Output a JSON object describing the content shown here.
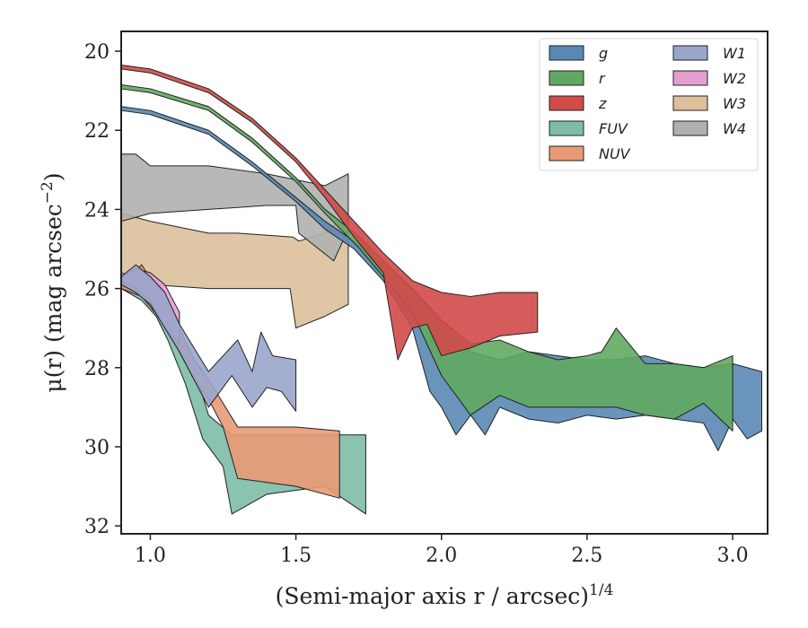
{
  "chart_data": {
    "type": "area",
    "xlabel": "(Semi-major axis r / arcsec)",
    "xlabel_exponent": "1/4",
    "ylabel": "μ(r) (mag arcsec",
    "ylabel_exponent": "−2",
    "ylabel_close": ")",
    "xlim": [
      0.9,
      3.12
    ],
    "ylim": [
      32.2,
      19.5
    ],
    "y_inverted": true,
    "xticks": [
      1.0,
      1.5,
      2.0,
      2.5,
      3.0
    ],
    "xtick_labels": [
      "1.0",
      "1.5",
      "2.0",
      "2.5",
      "3.0"
    ],
    "yticks": [
      20,
      22,
      24,
      26,
      28,
      30,
      32
    ],
    "ytick_labels": [
      "20",
      "22",
      "24",
      "26",
      "28",
      "30",
      "32"
    ],
    "grid": false,
    "legend_position": "top-right",
    "legend_columns": 2,
    "series": [
      {
        "name": "W3",
        "color": "#dcc09b",
        "upper": [
          [
            0.9,
            24.1
          ],
          [
            1.0,
            24.3
          ],
          [
            1.2,
            24.6
          ],
          [
            1.3,
            24.6
          ],
          [
            1.49,
            24.7
          ],
          [
            1.51,
            24.8
          ],
          [
            1.6,
            24.6
          ],
          [
            1.68,
            24.1
          ]
        ],
        "lower": [
          [
            0.9,
            25.6
          ],
          [
            1.0,
            25.9
          ],
          [
            1.2,
            26.0
          ],
          [
            1.3,
            26.0
          ],
          [
            1.48,
            26.0
          ],
          [
            1.5,
            27.0
          ],
          [
            1.6,
            26.7
          ],
          [
            1.68,
            26.4
          ]
        ]
      },
      {
        "name": "W4",
        "color": "#b0b0b0",
        "upper": [
          [
            0.9,
            22.6
          ],
          [
            0.95,
            22.6
          ],
          [
            1.0,
            22.9
          ],
          [
            1.1,
            22.9
          ],
          [
            1.2,
            22.9
          ],
          [
            1.4,
            23.1
          ],
          [
            1.6,
            23.4
          ],
          [
            1.68,
            23.1
          ]
        ],
        "lower": [
          [
            0.9,
            24.3
          ],
          [
            1.0,
            24.1
          ],
          [
            1.2,
            24.0
          ],
          [
            1.4,
            23.9
          ],
          [
            1.5,
            23.9
          ],
          [
            1.51,
            24.6
          ],
          [
            1.63,
            25.3
          ],
          [
            1.68,
            24.5
          ]
        ]
      },
      {
        "name": "FUV",
        "color": "#7dbda7",
        "upper": [
          [
            0.9,
            26.0
          ],
          [
            0.96,
            25.8
          ],
          [
            1.0,
            26.0
          ],
          [
            1.05,
            26.6
          ],
          [
            1.1,
            27.2
          ],
          [
            1.15,
            28.0
          ],
          [
            1.2,
            29.2
          ],
          [
            1.28,
            29.7
          ],
          [
            1.5,
            29.7
          ],
          [
            1.74,
            29.7
          ]
        ],
        "lower": [
          [
            0.9,
            26.0
          ],
          [
            0.97,
            26.3
          ],
          [
            1.02,
            26.7
          ],
          [
            1.06,
            27.3
          ],
          [
            1.12,
            28.4
          ],
          [
            1.18,
            29.8
          ],
          [
            1.25,
            30.5
          ],
          [
            1.28,
            31.7
          ],
          [
            1.4,
            31.2
          ],
          [
            1.6,
            31.0
          ],
          [
            1.74,
            31.7
          ]
        ]
      },
      {
        "name": "NUV",
        "color": "#e99a75",
        "upper": [
          [
            0.9,
            25.9
          ],
          [
            0.97,
            25.4
          ],
          [
            1.05,
            26.3
          ],
          [
            1.1,
            27.0
          ],
          [
            1.15,
            27.8
          ],
          [
            1.2,
            28.3
          ],
          [
            1.25,
            28.9
          ],
          [
            1.3,
            29.5
          ],
          [
            1.5,
            29.5
          ],
          [
            1.65,
            29.6
          ]
        ],
        "lower": [
          [
            0.9,
            26.0
          ],
          [
            0.97,
            26.2
          ],
          [
            1.05,
            26.9
          ],
          [
            1.1,
            27.6
          ],
          [
            1.15,
            28.3
          ],
          [
            1.2,
            28.8
          ],
          [
            1.25,
            29.5
          ],
          [
            1.3,
            30.8
          ],
          [
            1.5,
            31.0
          ],
          [
            1.65,
            31.3
          ]
        ]
      },
      {
        "name": "W2",
        "color": "#e39fd0",
        "upper": [
          [
            0.9,
            25.7
          ],
          [
            0.95,
            25.5
          ],
          [
            1.0,
            25.6
          ],
          [
            1.05,
            25.9
          ],
          [
            1.1,
            26.6
          ]
        ],
        "lower": [
          [
            0.9,
            25.8
          ],
          [
            0.95,
            26.0
          ],
          [
            1.0,
            26.3
          ],
          [
            1.05,
            27.0
          ],
          [
            1.1,
            27.4
          ]
        ]
      },
      {
        "name": "W1",
        "color": "#9aa5cb",
        "upper": [
          [
            0.9,
            25.7
          ],
          [
            0.95,
            25.4
          ],
          [
            1.0,
            25.7
          ],
          [
            1.05,
            26.1
          ],
          [
            1.1,
            26.9
          ],
          [
            1.2,
            28.1
          ],
          [
            1.3,
            27.3
          ],
          [
            1.35,
            28.1
          ],
          [
            1.38,
            27.1
          ],
          [
            1.42,
            27.7
          ],
          [
            1.5,
            27.8
          ]
        ],
        "lower": [
          [
            0.9,
            25.9
          ],
          [
            0.95,
            26.1
          ],
          [
            1.0,
            26.4
          ],
          [
            1.05,
            27.0
          ],
          [
            1.1,
            27.6
          ],
          [
            1.2,
            29.0
          ],
          [
            1.28,
            28.2
          ],
          [
            1.35,
            29.0
          ],
          [
            1.4,
            28.5
          ],
          [
            1.45,
            28.6
          ],
          [
            1.5,
            29.1
          ]
        ]
      },
      {
        "name": "g",
        "color": "#5a88b4",
        "upper": [
          [
            0.9,
            21.4
          ],
          [
            1.0,
            21.5
          ],
          [
            1.2,
            22.0
          ],
          [
            1.35,
            22.8
          ],
          [
            1.5,
            23.7
          ],
          [
            1.6,
            24.3
          ],
          [
            1.7,
            24.8
          ],
          [
            1.8,
            25.4
          ],
          [
            1.9,
            26.0
          ],
          [
            2.0,
            26.9
          ],
          [
            2.1,
            27.6
          ],
          [
            2.2,
            27.8
          ],
          [
            2.3,
            27.6
          ],
          [
            2.4,
            27.7
          ],
          [
            2.5,
            27.8
          ],
          [
            2.6,
            27.8
          ],
          [
            2.7,
            27.7
          ],
          [
            2.8,
            27.9
          ],
          [
            2.9,
            28.0
          ],
          [
            3.0,
            27.9
          ],
          [
            3.1,
            28.1
          ]
        ],
        "lower": [
          [
            0.9,
            21.5
          ],
          [
            1.0,
            21.6
          ],
          [
            1.2,
            22.1
          ],
          [
            1.35,
            22.9
          ],
          [
            1.5,
            23.8
          ],
          [
            1.6,
            24.5
          ],
          [
            1.7,
            25.0
          ],
          [
            1.8,
            25.8
          ],
          [
            1.9,
            27.0
          ],
          [
            1.96,
            28.6
          ],
          [
            2.0,
            29.0
          ],
          [
            2.05,
            29.7
          ],
          [
            2.1,
            29.2
          ],
          [
            2.15,
            29.7
          ],
          [
            2.2,
            29.0
          ],
          [
            2.3,
            29.3
          ],
          [
            2.4,
            29.4
          ],
          [
            2.5,
            29.2
          ],
          [
            2.6,
            29.3
          ],
          [
            2.7,
            29.2
          ],
          [
            2.8,
            29.3
          ],
          [
            2.9,
            29.4
          ],
          [
            2.95,
            30.1
          ],
          [
            3.0,
            29.3
          ],
          [
            3.05,
            29.8
          ],
          [
            3.1,
            29.6
          ]
        ]
      },
      {
        "name": "r",
        "color": "#62a862",
        "upper": [
          [
            0.9,
            20.85
          ],
          [
            1.0,
            20.95
          ],
          [
            1.2,
            21.4
          ],
          [
            1.35,
            22.2
          ],
          [
            1.5,
            23.2
          ],
          [
            1.6,
            24.0
          ],
          [
            1.72,
            24.7
          ],
          [
            1.8,
            25.3
          ],
          [
            1.9,
            26.0
          ],
          [
            2.0,
            26.8
          ],
          [
            2.1,
            27.4
          ],
          [
            2.2,
            27.3
          ],
          [
            2.3,
            27.6
          ],
          [
            2.4,
            27.8
          ],
          [
            2.5,
            27.7
          ],
          [
            2.55,
            27.6
          ],
          [
            2.6,
            27.0
          ],
          [
            2.7,
            27.9
          ],
          [
            2.8,
            27.9
          ],
          [
            2.9,
            28.0
          ],
          [
            3.0,
            27.7
          ]
        ],
        "lower": [
          [
            0.9,
            20.95
          ],
          [
            1.0,
            21.05
          ],
          [
            1.2,
            21.5
          ],
          [
            1.35,
            22.3
          ],
          [
            1.5,
            23.3
          ],
          [
            1.6,
            24.1
          ],
          [
            1.72,
            25.0
          ],
          [
            1.8,
            25.7
          ],
          [
            1.9,
            26.6
          ],
          [
            2.0,
            28.2
          ],
          [
            2.1,
            29.2
          ],
          [
            2.2,
            28.7
          ],
          [
            2.3,
            29.0
          ],
          [
            2.4,
            29.0
          ],
          [
            2.5,
            29.0
          ],
          [
            2.6,
            29.0
          ],
          [
            2.7,
            29.2
          ],
          [
            2.8,
            29.3
          ],
          [
            2.9,
            28.9
          ],
          [
            3.0,
            29.6
          ]
        ]
      },
      {
        "name": "z",
        "color": "#d24a4a",
        "upper": [
          [
            0.9,
            20.35
          ],
          [
            1.0,
            20.45
          ],
          [
            1.2,
            20.95
          ],
          [
            1.35,
            21.7
          ],
          [
            1.5,
            22.7
          ],
          [
            1.6,
            23.5
          ],
          [
            1.7,
            24.3
          ],
          [
            1.8,
            25.1
          ],
          [
            1.9,
            25.8
          ],
          [
            2.0,
            26.1
          ],
          [
            2.1,
            26.2
          ],
          [
            2.2,
            26.1
          ],
          [
            2.33,
            26.1
          ]
        ],
        "lower": [
          [
            0.9,
            20.45
          ],
          [
            1.0,
            20.55
          ],
          [
            1.2,
            21.05
          ],
          [
            1.35,
            21.8
          ],
          [
            1.5,
            22.8
          ],
          [
            1.6,
            23.7
          ],
          [
            1.7,
            24.7
          ],
          [
            1.8,
            25.6
          ],
          [
            1.85,
            27.8
          ],
          [
            1.9,
            27.0
          ],
          [
            1.95,
            26.9
          ],
          [
            2.0,
            27.7
          ],
          [
            2.1,
            27.5
          ],
          [
            2.2,
            27.2
          ],
          [
            2.33,
            27.1
          ]
        ]
      }
    ],
    "legend_order": [
      "g",
      "r",
      "z",
      "FUV",
      "NUV",
      "W1",
      "W2",
      "W3",
      "W4"
    ]
  }
}
